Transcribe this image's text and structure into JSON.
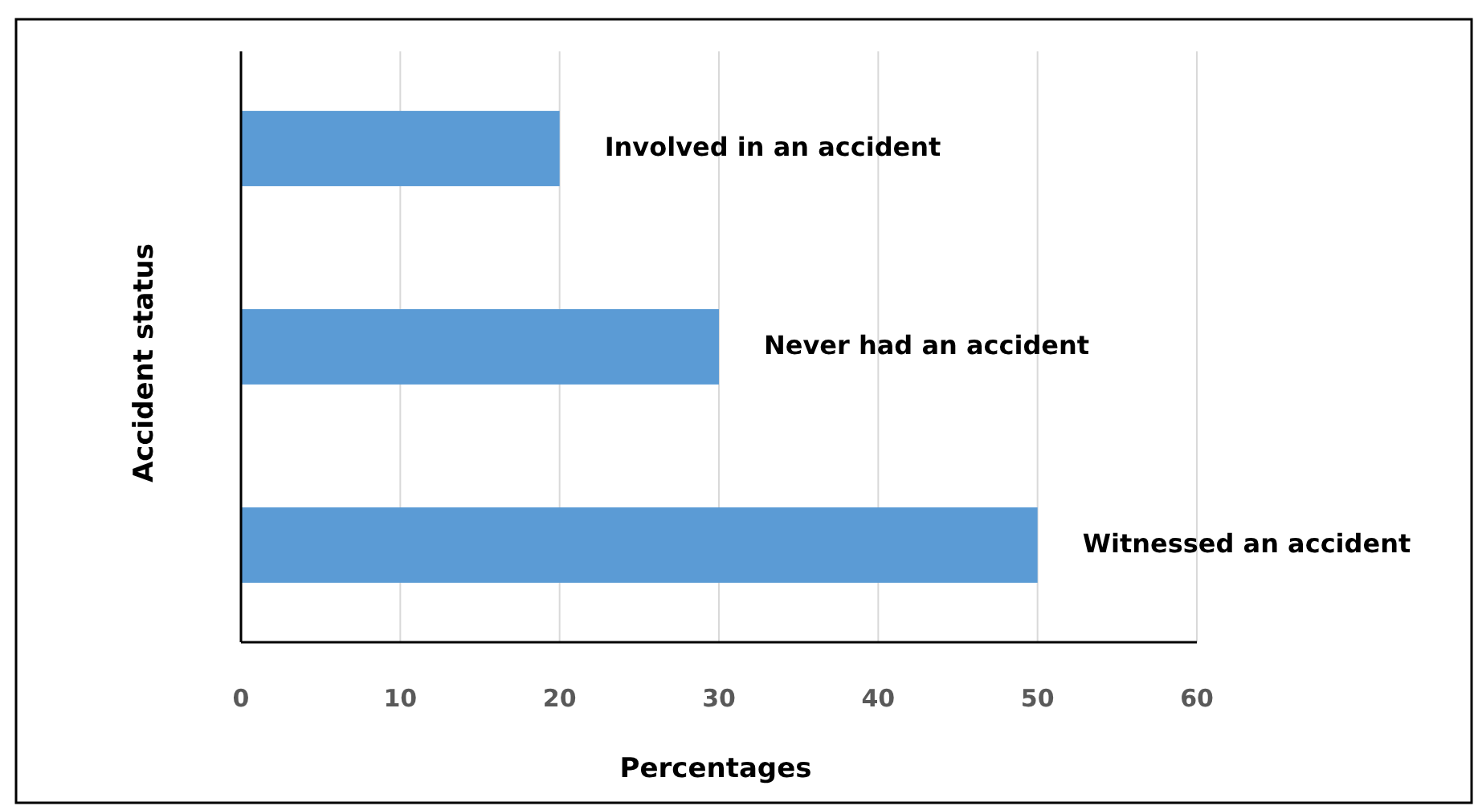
{
  "chart_data": {
    "type": "bar",
    "orientation": "horizontal",
    "xlabel": "Percentages",
    "ylabel": "Accident status",
    "categories": [
      "Involved in an accident",
      "Never had an accident",
      "Witnessed an accident"
    ],
    "values": [
      20,
      30,
      50
    ],
    "color": "#5b9bd5",
    "xlim": [
      0,
      60
    ],
    "xticks": [
      0,
      10,
      20,
      30,
      40,
      50,
      60
    ],
    "grid": "x"
  }
}
